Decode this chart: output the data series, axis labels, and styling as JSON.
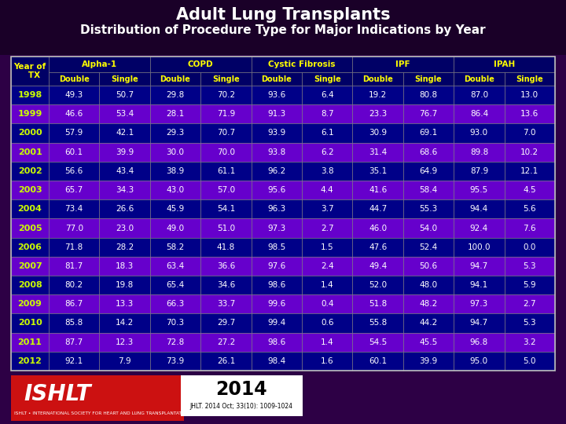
{
  "title_line1": "Adult Lung Transplants",
  "title_line2": "Distribution of Procedure Type for Major Indications by Year",
  "bg_color": "#2d0045",
  "header_bg": "#000066",
  "odd_row_bg": "#000088",
  "even_row_bg": "#6600cc",
  "year_text_color": "#ccff00",
  "header_text": "#ffff00",
  "data_text": "#ffffff",
  "col_groups": [
    "Alpha-1",
    "COPD",
    "Cystic Fibrosis",
    "IPF",
    "IPAH"
  ],
  "sub_cols": [
    "Double",
    "Single"
  ],
  "years": [
    1998,
    1999,
    2000,
    2001,
    2002,
    2003,
    2004,
    2005,
    2006,
    2007,
    2008,
    2009,
    2010,
    2011,
    2012
  ],
  "data": [
    [
      49.3,
      50.7,
      29.8,
      70.2,
      93.6,
      6.4,
      19.2,
      80.8,
      87.0,
      13.0
    ],
    [
      46.6,
      53.4,
      28.1,
      71.9,
      91.3,
      8.7,
      23.3,
      76.7,
      86.4,
      13.6
    ],
    [
      57.9,
      42.1,
      29.3,
      70.7,
      93.9,
      6.1,
      30.9,
      69.1,
      93.0,
      7.0
    ],
    [
      60.1,
      39.9,
      30.0,
      70.0,
      93.8,
      6.2,
      31.4,
      68.6,
      89.8,
      10.2
    ],
    [
      56.6,
      43.4,
      38.9,
      61.1,
      96.2,
      3.8,
      35.1,
      64.9,
      87.9,
      12.1
    ],
    [
      65.7,
      34.3,
      43.0,
      57.0,
      95.6,
      4.4,
      41.6,
      58.4,
      95.5,
      4.5
    ],
    [
      73.4,
      26.6,
      45.9,
      54.1,
      96.3,
      3.7,
      44.7,
      55.3,
      94.4,
      5.6
    ],
    [
      77.0,
      23.0,
      49.0,
      51.0,
      97.3,
      2.7,
      46.0,
      54.0,
      92.4,
      7.6
    ],
    [
      71.8,
      28.2,
      58.2,
      41.8,
      98.5,
      1.5,
      47.6,
      52.4,
      100.0,
      0.0
    ],
    [
      81.7,
      18.3,
      63.4,
      36.6,
      97.6,
      2.4,
      49.4,
      50.6,
      94.7,
      5.3
    ],
    [
      80.2,
      19.8,
      65.4,
      34.6,
      98.6,
      1.4,
      52.0,
      48.0,
      94.1,
      5.9
    ],
    [
      86.7,
      13.3,
      66.3,
      33.7,
      99.6,
      0.4,
      51.8,
      48.2,
      97.3,
      2.7
    ],
    [
      85.8,
      14.2,
      70.3,
      29.7,
      99.4,
      0.6,
      55.8,
      44.2,
      94.7,
      5.3
    ],
    [
      87.7,
      12.3,
      72.8,
      27.2,
      98.6,
      1.4,
      54.5,
      45.5,
      96.8,
      3.2
    ],
    [
      92.1,
      7.9,
      73.9,
      26.1,
      98.4,
      1.6,
      60.1,
      39.9,
      95.0,
      5.0
    ]
  ],
  "footer_year": "2014",
  "footer_journal": "JHLT. 2014 Oct; 33(10): 1009-1024",
  "footer_ishlt_line": "ISHLT • INTERNATIONAL SOCIETY FOR HEART AND LUNG TRANSPLANTATION"
}
